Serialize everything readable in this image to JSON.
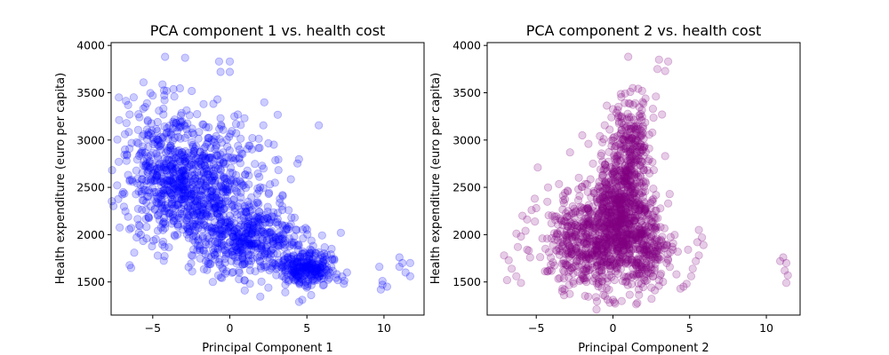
{
  "chart_data": [
    {
      "type": "scatter",
      "title": "PCA component 1 vs. health cost",
      "xlabel": "Principal Component 1",
      "ylabel": "Health expenditure (euro per capita)",
      "xlim": [
        -7.7,
        12.6
      ],
      "ylim": [
        1150,
        4030
      ],
      "xticks": [
        -5,
        0,
        5,
        10
      ],
      "yticks": [
        1500,
        2000,
        2500,
        3000,
        3500,
        4000
      ],
      "color": "#0000ff",
      "alpha": 0.2,
      "grid": false,
      "legend": "none",
      "clusters": [
        {
          "cx": -2.5,
          "cy": 2450,
          "sx": 2.0,
          "sy": 280,
          "n": 650
        },
        {
          "cx": 1.5,
          "cy": 1950,
          "sx": 1.8,
          "sy": 180,
          "n": 450
        },
        {
          "cx": 5.0,
          "cy": 1650,
          "sx": 1.0,
          "sy": 90,
          "n": 250
        },
        {
          "cx": -4.5,
          "cy": 2900,
          "sx": 1.4,
          "sy": 320,
          "n": 180
        },
        {
          "cx": -0.5,
          "cy": 2800,
          "sx": 2.0,
          "sy": 250,
          "n": 110
        }
      ],
      "extra_points": [
        [
          -4.2,
          3880
        ],
        [
          -2.9,
          3870
        ],
        [
          -0.7,
          3830
        ],
        [
          0.0,
          3830
        ],
        [
          -0.6,
          3720
        ],
        [
          0.0,
          3720
        ],
        [
          -0.8,
          3430
        ],
        [
          -5.6,
          3610
        ],
        [
          -5.0,
          3470
        ],
        [
          -4.1,
          3520
        ],
        [
          -3.6,
          3460
        ],
        [
          -1.7,
          3380
        ],
        [
          0.3,
          3250
        ],
        [
          0.4,
          3170
        ],
        [
          -6.6,
          3370
        ],
        [
          -6.5,
          3270
        ],
        [
          -6.8,
          2900
        ],
        [
          -6.7,
          2780
        ],
        [
          -6.3,
          2560
        ],
        [
          -6.4,
          2070
        ],
        [
          -5.9,
          2020
        ],
        [
          -5.4,
          1960
        ],
        [
          7.6,
          1600
        ],
        [
          7.4,
          1480
        ],
        [
          5.0,
          1440
        ],
        [
          4.7,
          1310
        ],
        [
          4.5,
          1290
        ],
        [
          1.3,
          1480
        ],
        [
          -1.1,
          1500
        ],
        [
          7.2,
          2020
        ],
        [
          6.6,
          1850
        ],
        [
          9.7,
          1660
        ],
        [
          9.9,
          1470
        ],
        [
          10.2,
          1450
        ],
        [
          9.8,
          1420
        ],
        [
          9.9,
          1510
        ],
        [
          11.0,
          1760
        ],
        [
          11.2,
          1700
        ],
        [
          11.7,
          1700
        ],
        [
          11.0,
          1660
        ],
        [
          11.4,
          1600
        ],
        [
          11.7,
          1560
        ],
        [
          3.6,
          1390
        ],
        [
          2.5,
          1440
        ],
        [
          6.1,
          1470
        ],
        [
          7.0,
          1520
        ]
      ]
    },
    {
      "type": "scatter",
      "title": "PCA component 2 vs. health cost",
      "xlabel": "Principal Component 2",
      "ylabel": "Health expenditure (euro per capita)",
      "xlim": [
        -8.2,
        12.2
      ],
      "ylim": [
        1150,
        4030
      ],
      "xticks": [
        -5,
        0,
        5,
        10
      ],
      "yticks": [
        1500,
        2000,
        2500,
        3000,
        3500,
        4000
      ],
      "color": "#800080",
      "alpha": 0.2,
      "grid": false,
      "legend": "none",
      "clusters": [
        {
          "cx": 0.4,
          "cy": 2150,
          "sx": 0.9,
          "sy": 320,
          "n": 650
        },
        {
          "cx": 0.9,
          "cy": 2700,
          "sx": 0.7,
          "sy": 320,
          "n": 260
        },
        {
          "cx": -1.5,
          "cy": 1900,
          "sx": 1.2,
          "sy": 280,
          "n": 350
        },
        {
          "cx": 2.2,
          "cy": 1850,
          "sx": 0.8,
          "sy": 230,
          "n": 220
        },
        {
          "cx": -3.2,
          "cy": 1950,
          "sx": 0.6,
          "sy": 260,
          "n": 90
        },
        {
          "cx": 1.5,
          "cy": 3100,
          "sx": 0.6,
          "sy": 200,
          "n": 60
        }
      ],
      "extra_points": [
        [
          -7.1,
          1780
        ],
        [
          -6.8,
          1730
        ],
        [
          -6.6,
          1640
        ],
        [
          -6.3,
          1560
        ],
        [
          -6.9,
          1520
        ],
        [
          -6.0,
          1490
        ],
        [
          -6.2,
          1870
        ],
        [
          -6.0,
          1980
        ],
        [
          -5.7,
          2040
        ],
        [
          -5.9,
          2200
        ],
        [
          -5.6,
          2160
        ],
        [
          -5.3,
          2260
        ],
        [
          -5.1,
          2380
        ],
        [
          -5.0,
          2280
        ],
        [
          -4.9,
          2710
        ],
        [
          -5.4,
          1760
        ],
        [
          -5.6,
          1840
        ],
        [
          -4.6,
          1960
        ],
        [
          3.0,
          3850
        ],
        [
          3.4,
          3730
        ],
        [
          3.6,
          3830
        ],
        [
          2.9,
          3750
        ],
        [
          1.0,
          3880
        ],
        [
          1.9,
          3520
        ],
        [
          2.6,
          3330
        ],
        [
          3.2,
          3270
        ],
        [
          2.8,
          3460
        ],
        [
          3.4,
          2830
        ],
        [
          3.7,
          2430
        ],
        [
          3.6,
          2330
        ],
        [
          3.1,
          2080
        ],
        [
          3.9,
          1840
        ],
        [
          3.5,
          1700
        ],
        [
          4.9,
          1840
        ],
        [
          5.2,
          1640
        ],
        [
          5.1,
          1560
        ],
        [
          5.5,
          1920
        ],
        [
          5.8,
          1970
        ],
        [
          5.9,
          1890
        ],
        [
          5.6,
          1780
        ],
        [
          5.4,
          1720
        ],
        [
          5.6,
          2050
        ],
        [
          4.4,
          1430
        ],
        [
          4.6,
          1450
        ],
        [
          4.8,
          1480
        ],
        [
          10.9,
          1720
        ],
        [
          11.1,
          1760
        ],
        [
          11.3,
          1700
        ],
        [
          11.2,
          1620
        ],
        [
          11.4,
          1570
        ],
        [
          11.3,
          1490
        ],
        [
          0.0,
          1310
        ],
        [
          -0.2,
          1280
        ],
        [
          -2.0,
          3050
        ],
        [
          -2.8,
          2870
        ],
        [
          -1.6,
          2960
        ],
        [
          -0.1,
          3240
        ]
      ]
    }
  ]
}
